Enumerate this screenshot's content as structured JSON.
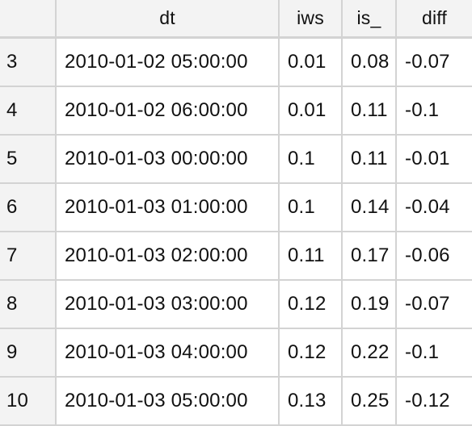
{
  "table": {
    "columns": [
      "",
      "dt",
      "iws",
      "is_",
      "diff"
    ],
    "rows": [
      {
        "index": "3",
        "dt": "2010-01-02 05:00:00",
        "iws": "0.01",
        "is_": "0.08",
        "diff": "-0.07"
      },
      {
        "index": "4",
        "dt": "2010-01-02 06:00:00",
        "iws": "0.01",
        "is_": "0.11",
        "diff": "-0.1"
      },
      {
        "index": "5",
        "dt": "2010-01-03 00:00:00",
        "iws": "0.1",
        "is_": "0.11",
        "diff": "-0.01"
      },
      {
        "index": "6",
        "dt": "2010-01-03 01:00:00",
        "iws": "0.1",
        "is_": "0.14",
        "diff": "-0.04"
      },
      {
        "index": "7",
        "dt": "2010-01-03 02:00:00",
        "iws": "0.11",
        "is_": "0.17",
        "diff": "-0.06"
      },
      {
        "index": "8",
        "dt": "2010-01-03 03:00:00",
        "iws": "0.12",
        "is_": "0.19",
        "diff": "-0.07"
      },
      {
        "index": "9",
        "dt": "2010-01-03 04:00:00",
        "iws": "0.12",
        "is_": "0.22",
        "diff": "-0.1"
      },
      {
        "index": "10",
        "dt": "2010-01-03 05:00:00",
        "iws": "0.13",
        "is_": "0.25",
        "diff": "-0.12"
      }
    ]
  }
}
